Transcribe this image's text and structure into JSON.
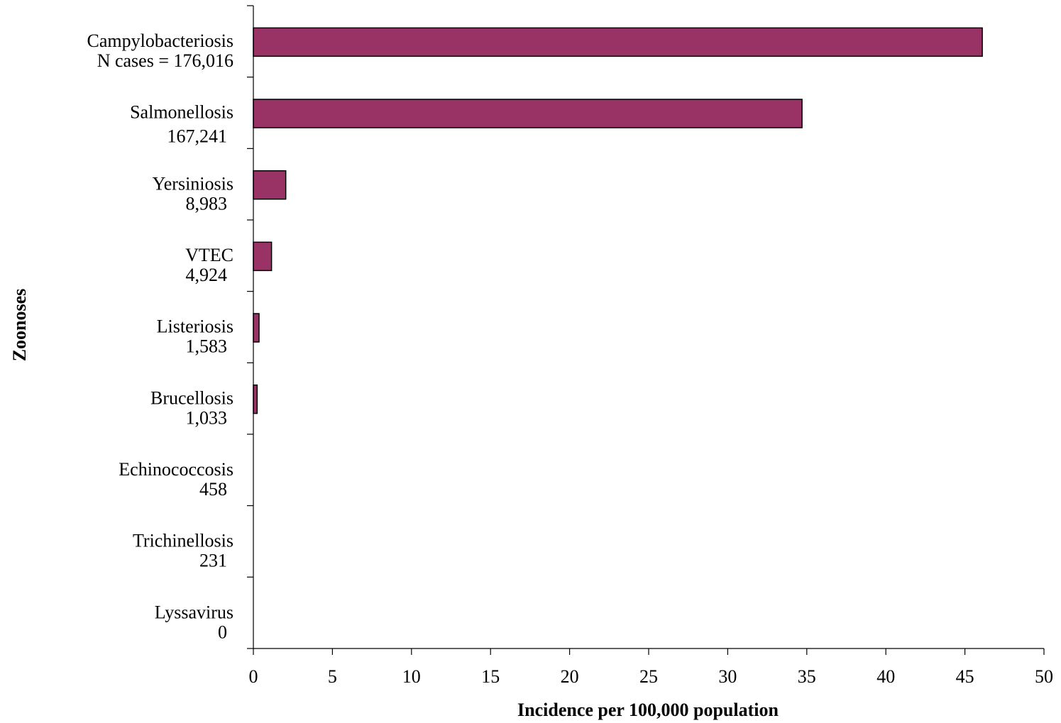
{
  "chart_data": {
    "type": "bar",
    "orientation": "horizontal",
    "categories": [
      {
        "name": "Campylobacteriosis",
        "cases": "N cases = 176,016",
        "value": 46.1
      },
      {
        "name": "Salmonellosis",
        "cases": "167,241",
        "value": 34.7
      },
      {
        "name": "Yersiniosis",
        "cases": "8,983",
        "value": 2.05
      },
      {
        "name": "VTEC",
        "cases": "4,924",
        "value": 1.15
      },
      {
        "name": "Listeriosis",
        "cases": "1,583",
        "value": 0.36
      },
      {
        "name": "Brucellosis",
        "cases": "1,033",
        "value": 0.24
      },
      {
        "name": "Echinococcosis",
        "cases": "458",
        "value": 0
      },
      {
        "name": "Trichinellosis",
        "cases": "231",
        "value": 0
      },
      {
        "name": "Lyssavirus",
        "cases": "0",
        "value": 0
      }
    ],
    "xlabel": "Incidence per 100,000 population",
    "ylabel": "Zoonoses",
    "xlim": [
      0,
      50
    ],
    "xticks": [
      0,
      5,
      10,
      15,
      20,
      25,
      30,
      35,
      40,
      45,
      50
    ],
    "grid": false,
    "bar_color": "#993366",
    "bar_edge_color": "#000000"
  }
}
